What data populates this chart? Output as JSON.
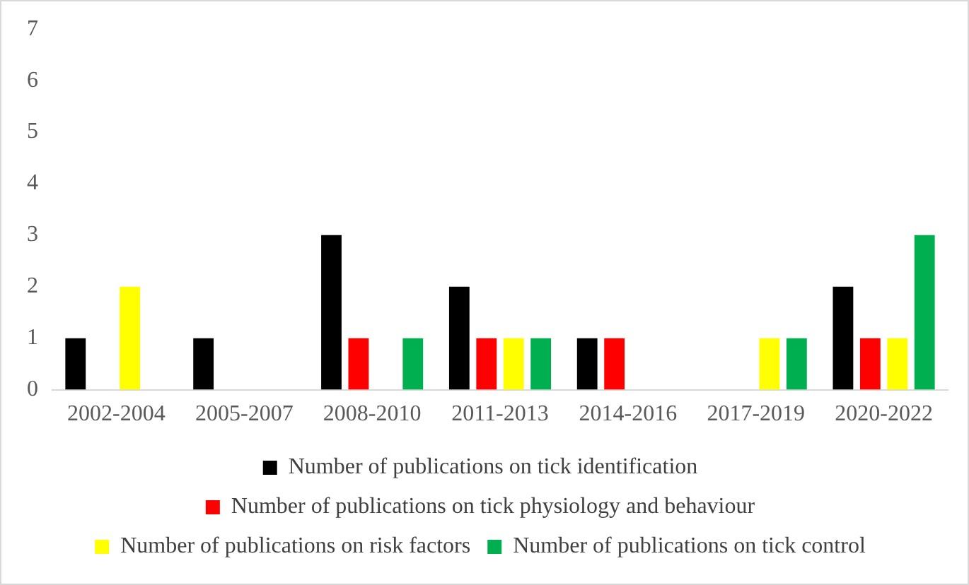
{
  "chart_data": {
    "type": "bar",
    "categories": [
      "2002-2004",
      "2005-2007",
      "2008-2010",
      "2011-2013",
      "2014-2016",
      "2017-2019",
      "2020-2022"
    ],
    "series": [
      {
        "name": "Number of publications on tick identification",
        "color": "#000000",
        "values": [
          1,
          1,
          3,
          2,
          1,
          0,
          2
        ]
      },
      {
        "name": "Number of publications on tick physiology and behaviour",
        "color": "#ff0000",
        "values": [
          0,
          0,
          1,
          1,
          1,
          0,
          1
        ]
      },
      {
        "name": "Number of publications on risk factors",
        "color": "#ffff00",
        "values": [
          2,
          0,
          0,
          1,
          0,
          1,
          1
        ]
      },
      {
        "name": "Number of publications on tick control",
        "color": "#00b050",
        "values": [
          0,
          0,
          1,
          1,
          0,
          1,
          3
        ]
      }
    ],
    "ylim": [
      0,
      7
    ],
    "yticks": [
      0,
      1,
      2,
      3,
      4,
      5,
      6,
      7
    ],
    "grid": false,
    "legend": "bottom"
  }
}
